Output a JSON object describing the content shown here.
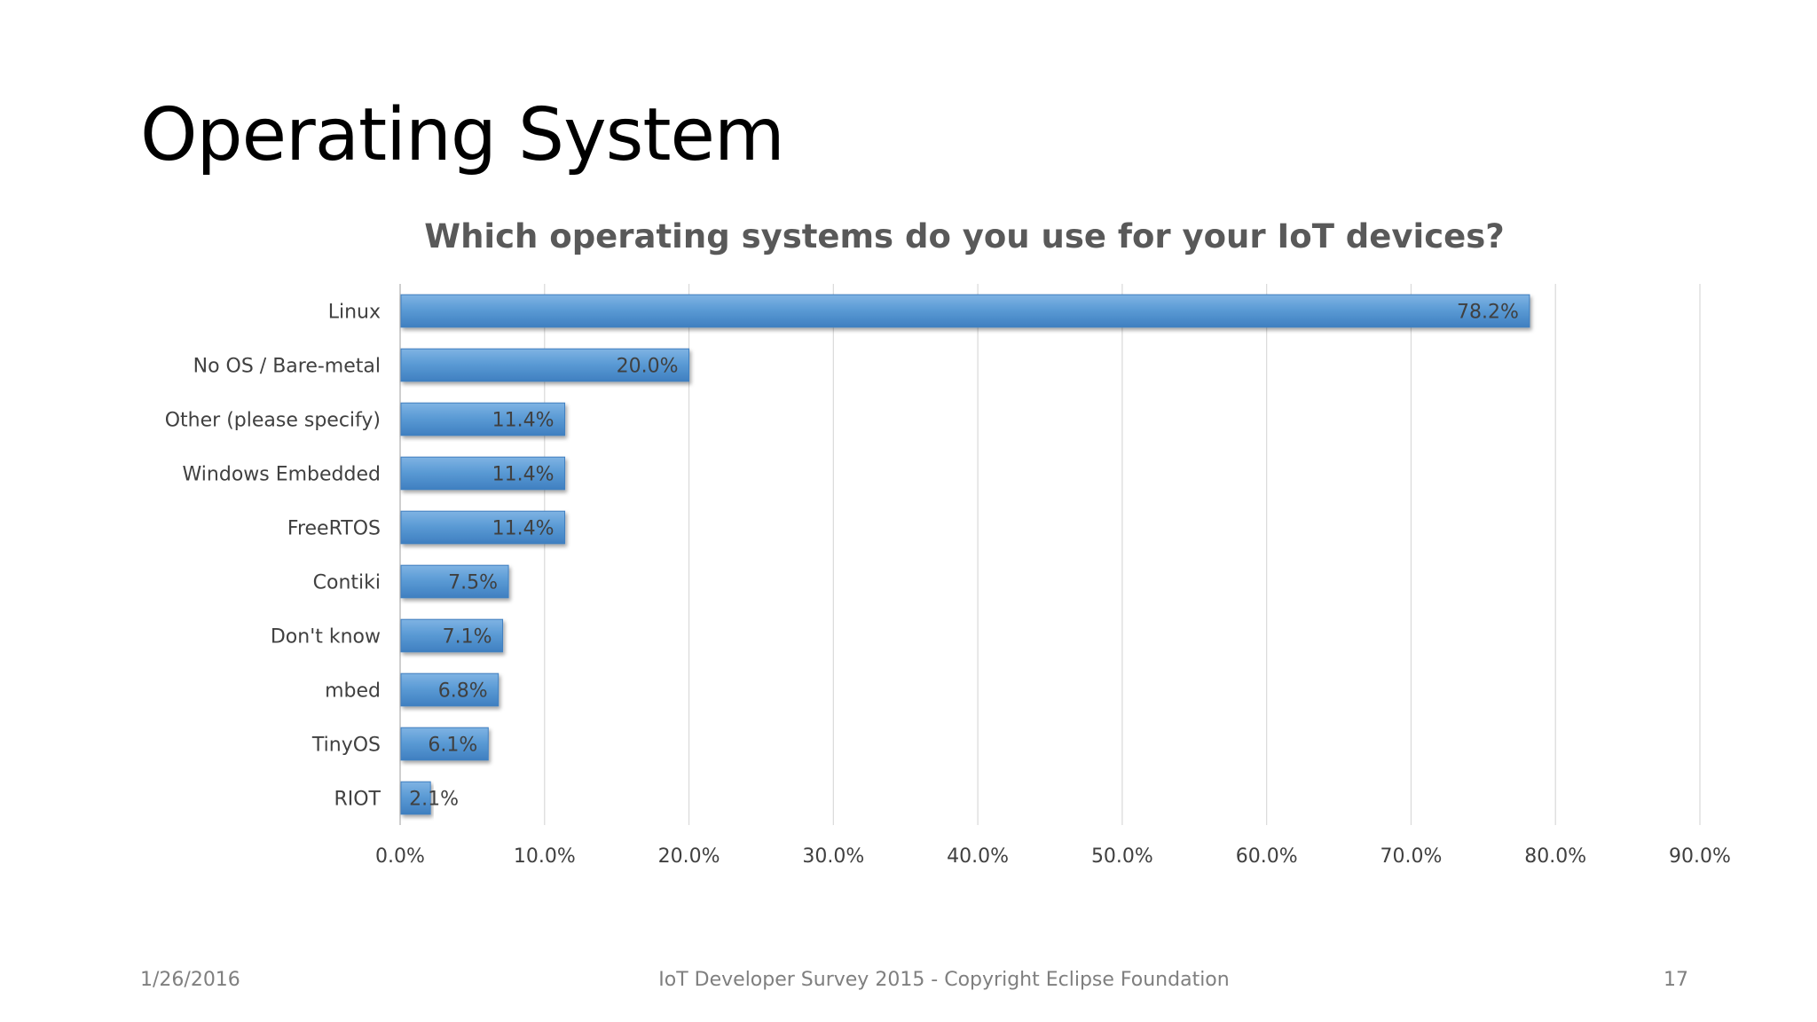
{
  "slide": {
    "title": "Operating System"
  },
  "footer": {
    "date": "1/26/2016",
    "center": "IoT Developer Survey 2015 - Copyright Eclipse Foundation",
    "page": "17"
  },
  "colors": {
    "bar": "#5b9bd5",
    "bar_dark": "#3f7fc0",
    "grid": "#d9d9d9",
    "text": "#404040"
  },
  "chart_data": {
    "type": "bar",
    "orientation": "horizontal",
    "title": "Which operating systems do you use for your IoT devices?",
    "xlabel": "",
    "ylabel": "",
    "categories": [
      "Linux",
      "No OS / Bare-metal",
      "Other (please specify)",
      "Windows Embedded",
      "FreeRTOS",
      "Contiki",
      "Don't know",
      "mbed",
      "TinyOS",
      "RIOT"
    ],
    "values": [
      78.2,
      20.0,
      11.4,
      11.4,
      11.4,
      7.5,
      7.1,
      6.8,
      6.1,
      2.1
    ],
    "value_labels": [
      "78.2%",
      "20.0%",
      "11.4%",
      "11.4%",
      "11.4%",
      "7.5%",
      "7.1%",
      "6.8%",
      "6.1%",
      "2.1%"
    ],
    "xlim": [
      0,
      90
    ],
    "xticks": [
      0,
      10,
      20,
      30,
      40,
      50,
      60,
      70,
      80,
      90
    ],
    "xtick_labels": [
      "0.0%",
      "10.0%",
      "20.0%",
      "30.0%",
      "40.0%",
      "50.0%",
      "60.0%",
      "70.0%",
      "80.0%",
      "90.0%"
    ],
    "grid": true,
    "legend": "none"
  }
}
